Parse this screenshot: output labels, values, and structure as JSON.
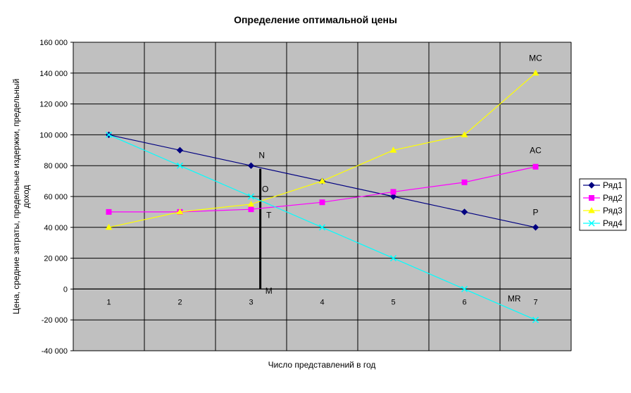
{
  "chart_data": {
    "type": "line",
    "title": "Определение оптимальной цены",
    "xlabel": "Число представлений в год",
    "ylabel": "Цена, средние затраты, предельные издержки, предельный доход",
    "categories": [
      "1",
      "2",
      "3",
      "4",
      "5",
      "6",
      "7"
    ],
    "ylim": [
      -40000,
      160000
    ],
    "yticks": [
      "160 000",
      "140 000",
      "120 000",
      "100 000",
      "80 000",
      "60 000",
      "40 000",
      "20 000",
      "0",
      "-20 000",
      "-40 000"
    ],
    "grid": true,
    "legend_position": "right",
    "series": [
      {
        "name": "Ряд1",
        "color": "#000080",
        "marker": "diamond",
        "values": [
          100000,
          90000,
          80000,
          70000,
          60000,
          50000,
          40000
        ]
      },
      {
        "name": "Ряд2",
        "color": "#ff00ff",
        "marker": "square",
        "values": [
          50000,
          50000,
          51700,
          56250,
          63000,
          69200,
          79300
        ]
      },
      {
        "name": "Ряд3",
        "color": "#ffff00",
        "marker": "triangle",
        "values": [
          40000,
          50000,
          55000,
          70000,
          90000,
          100000,
          140000
        ]
      },
      {
        "name": "Ряд4",
        "color": "#00ffff",
        "marker": "x",
        "values": [
          100000,
          80000,
          60000,
          40000,
          20000,
          0,
          -20000
        ]
      }
    ],
    "annotations": [
      {
        "text": "MC",
        "x": 7,
        "y": 148000
      },
      {
        "text": "AC",
        "x": 7,
        "y": 88000
      },
      {
        "text": "P",
        "x": 7,
        "y": 48000
      },
      {
        "text": "MR",
        "x": 6.7,
        "y": -8000
      },
      {
        "text": "N",
        "x": 3.15,
        "y": 85000
      },
      {
        "text": "O",
        "x": 3.2,
        "y": 63000
      },
      {
        "text": "T",
        "x": 3.25,
        "y": 46000
      },
      {
        "text": "M",
        "x": 3.25,
        "y": -3000
      }
    ],
    "vertical_line": {
      "x": 3.13,
      "y_from": 0,
      "y_to": 78000
    }
  }
}
